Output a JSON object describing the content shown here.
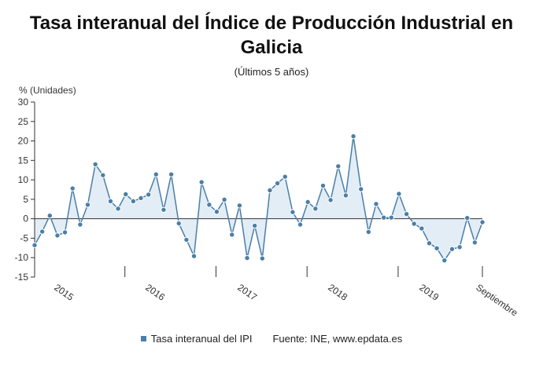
{
  "chart_data": {
    "type": "line",
    "title": "Tasa interanual del Índice de Producción Industrial en Galicia",
    "subtitle": "(Últimos 5 años)",
    "ylabel": "% (Unidades)",
    "ylim": [
      -15,
      30
    ],
    "yticks": [
      -15,
      -10,
      -5,
      0,
      5,
      10,
      15,
      20,
      25,
      30
    ],
    "xticks": [
      "2015",
      "2016",
      "2017",
      "2018",
      "2019",
      "Septiembre"
    ],
    "grid": false,
    "legend_position": "bottom",
    "colors": {
      "line": "#4a7fa7",
      "fill": "#e3edf6",
      "axis": "#333333"
    },
    "series": [
      {
        "name": "Tasa interanual del IPI",
        "values": [
          -6.8,
          -3.3,
          0.8,
          -4.3,
          -3.5,
          7.8,
          -1.5,
          3.6,
          14.0,
          11.2,
          4.5,
          2.6,
          6.3,
          4.5,
          5.3,
          6.2,
          11.4,
          2.3,
          11.4,
          -1.2,
          -5.4,
          -9.6,
          9.4,
          3.6,
          1.8,
          4.9,
          -4.1,
          3.4,
          -10.1,
          -1.8,
          -10.2,
          7.3,
          9.1,
          10.8,
          1.7,
          -1.5,
          4.3,
          2.6,
          8.5,
          4.8,
          13.5,
          6.0,
          21.2,
          7.6,
          -3.4,
          3.8,
          0.3,
          0.3,
          6.4,
          1.2,
          -1.3,
          -2.5,
          -6.3,
          -7.6,
          -10.7,
          -7.8,
          -7.3,
          0.2,
          -6.1,
          -0.9
        ]
      }
    ]
  },
  "legend": {
    "series_label": "Tasa interanual del IPI",
    "source": "Fuente: INE, www.epdata.es"
  }
}
